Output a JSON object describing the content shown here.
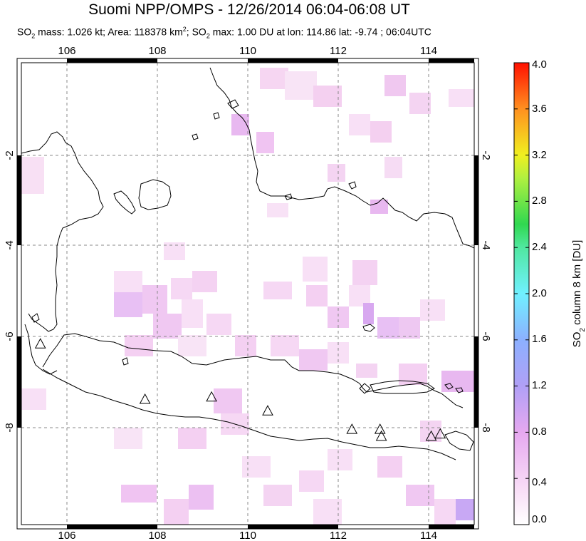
{
  "header": {
    "title": "Suomi NPP/OMPS - 12/26/2014 06:04-06:08 UT",
    "subtitle": {
      "mass_label": "SO",
      "mass_sub": "2",
      "mass_text": " mass: 1.026 kt; Area: 118378 km",
      "area_sup": "2",
      "max_prefix": "; SO",
      "max_sub": "2",
      "max_text": " max: 1.00 DU at lon: 114.86 lat: -9.74 ; 06:04UTC"
    }
  },
  "map": {
    "lon_range": [
      105,
      115
    ],
    "lat_range": [
      -10,
      0
    ],
    "lon_ticks": [
      "106",
      "108",
      "110",
      "112",
      "114"
    ],
    "lat_ticks": [
      "-2",
      "-4",
      "-6",
      "-8"
    ],
    "lon_tick_values": [
      106,
      108,
      110,
      112,
      114
    ],
    "lat_tick_values": [
      -2,
      -4,
      -6,
      -8
    ],
    "gridlines": true,
    "volcano_markers": [
      {
        "lon": 105.42,
        "lat": -6.1
      },
      {
        "lon": 107.73,
        "lat": -7.3
      },
      {
        "lon": 109.2,
        "lat": -7.25
      },
      {
        "lon": 110.44,
        "lat": -7.55
      },
      {
        "lon": 112.3,
        "lat": -7.95
      },
      {
        "lon": 112.92,
        "lat": -7.95
      },
      {
        "lon": 112.95,
        "lat": -8.1
      },
      {
        "lon": 114.05,
        "lat": -8.1
      },
      {
        "lon": 114.25,
        "lat": -8.05
      }
    ]
  },
  "colorbar": {
    "label": "SO",
    "label_sub": "2",
    "label_rest": " column 8 km [DU]",
    "range": [
      0.0,
      4.0
    ],
    "ticks": [
      "0.0",
      "0.4",
      "0.8",
      "1.2",
      "1.6",
      "2.0",
      "2.4",
      "2.8",
      "3.2",
      "3.6",
      "4.0"
    ],
    "tick_values": [
      0.0,
      0.4,
      0.8,
      1.2,
      1.6,
      2.0,
      2.4,
      2.8,
      3.2,
      3.6,
      4.0
    ],
    "colors": [
      "#ffffff",
      "#f6c8f0",
      "#d9a0f0",
      "#a8a0f8",
      "#88b8ff",
      "#70e8ff",
      "#60f0c0",
      "#40e060",
      "#a0f040",
      "#f0f020",
      "#ffb020",
      "#ff6010",
      "#ff0000"
    ]
  }
}
